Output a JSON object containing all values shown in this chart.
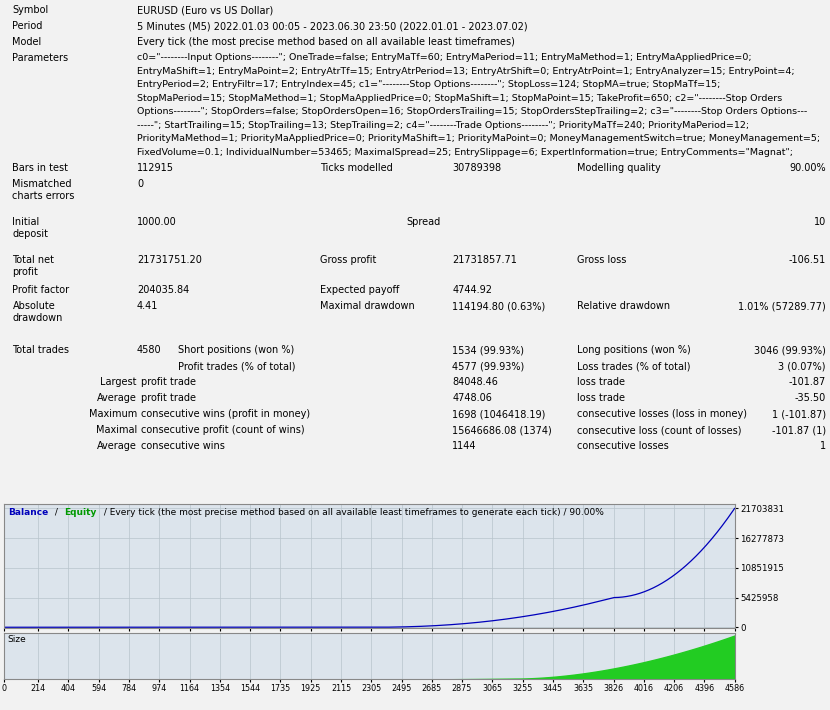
{
  "symbol": "EURUSD (Euro vs US Dollar)",
  "period": "5 Minutes (M5) 2022.01.03 00:05 - 2023.06.30 23:50 (2022.01.01 - 2023.07.02)",
  "model": "Every tick (the most precise method based on all available least timeframes)",
  "parameters_lines": [
    "c0=\"--------Input Options--------\"; OneTrade=false; EntryMaTf=60; EntryMaPeriod=11; EntryMaMethod=1; EntryMaAppliedPrice=0;",
    "EntryMaShift=1; EntryMaPoint=2; EntryAtrTf=15; EntryAtrPeriod=13; EntryAtrShift=0; EntryAtrPoint=1; EntryAnalyzer=15; EntryPoint=4;",
    "EntryPeriod=2; EntryFiltr=17; EntryIndex=45; c1=\"--------Stop Options--------\"; StopLoss=124; StopMA=true; StopMaTf=15;",
    "StopMaPeriod=15; StopMaMethod=1; StopMaAppliedPrice=0; StopMaShift=1; StopMaPoint=15; TakeProfit=650; c2=\"--------Stop Orders",
    "Options--------\"; StopOrders=false; StopOrdersOpen=16; StopOrdersTrailing=15; StopOrdersStepTrailing=2; c3=\"--------Stop Orders Options---",
    "-----\"; StartTrailing=15; StopTrailing=13; StepTrailing=2; c4=\"--------Trade Options--------\"; PriorityMaTf=240; PriorityMaPeriod=12;",
    "PriorityMaMethod=1; PriorityMaAppliedPrice=0; PriorityMaShift=1; PriorityMaPoint=0; MoneyManagementSwitch=true; MoneyManagement=5;",
    "FixedVolume=0.1; IndividualNumber=53465; MaximalSpread=25; EntrySlippage=6; ExpertInformation=true; EntryComments=\"Magnat\";"
  ],
  "bars_in_test": "112915",
  "ticks_modelled": "30789398",
  "modelling_quality": "90.00%",
  "mismatched_charts_errors": "0",
  "initial_deposit": "1000.00",
  "spread": "10",
  "total_net_profit": "21731751.20",
  "gross_profit": "21731857.71",
  "gross_loss": "-106.51",
  "profit_factor": "204035.84",
  "expected_payoff": "4744.92",
  "absolute_drawdown": "4.41",
  "maximal_drawdown": "114194.80 (0.63%)",
  "relative_drawdown": "1.01% (57289.77)",
  "total_trades": "4580",
  "short_positions": "1534 (99.93%)",
  "long_positions": "3046 (99.93%)",
  "profit_trades": "4577 (99.93%)",
  "loss_trades": "3 (0.07%)",
  "largest_profit_trade": "84048.46",
  "largest_loss_trade": "-101.87",
  "average_profit_trade": "4748.06",
  "average_loss_trade": "-35.50",
  "max_consecutive_wins": "1698 (1046418.19)",
  "max_consecutive_losses": "1 (-101.87)",
  "maximal_consecutive_profit": "15646686.08 (1374)",
  "maximal_consecutive_loss": "-101.87 (1)",
  "average_consecutive_wins": "1144",
  "average_consecutive_losses": "1",
  "chart_y_ticks": [
    0,
    5425958,
    10851915,
    16277873,
    21703831
  ],
  "chart_x_ticks": [
    0,
    214,
    404,
    594,
    784,
    974,
    1164,
    1354,
    1544,
    1735,
    1925,
    2115,
    2305,
    2495,
    2685,
    2875,
    3065,
    3255,
    3445,
    3635,
    3826,
    4016,
    4206,
    4396,
    4586
  ],
  "bg_color": "#f2f2f2",
  "chart_bg": "#dce4ec",
  "balance_color": "#0000bb",
  "size_color": "#22cc22",
  "label_color_balance": "#0000bb",
  "label_color_equity": "#009900"
}
